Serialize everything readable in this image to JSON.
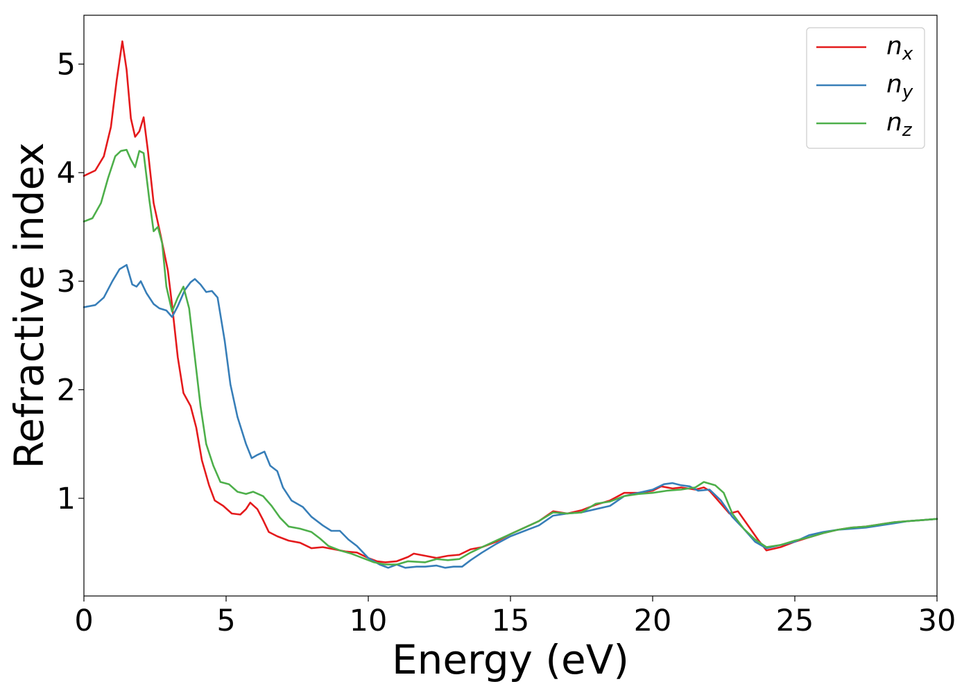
{
  "chart_data": {
    "type": "line",
    "xlabel": "Energy (eV)",
    "ylabel": "Refractive index",
    "xlim": [
      0,
      30
    ],
    "ylim": [
      0.1,
      5.45
    ],
    "xticks": [
      0,
      5,
      10,
      15,
      20,
      25,
      30
    ],
    "xtick_labels": [
      "0",
      "5",
      "10",
      "15",
      "20",
      "25",
      "30"
    ],
    "yticks": [
      1,
      2,
      3,
      4,
      5
    ],
    "ytick_labels": [
      "1",
      "2",
      "3",
      "4",
      "5"
    ],
    "grid": false,
    "legend_position": "top-right",
    "series": [
      {
        "name": "n_x",
        "legend_base": "n",
        "legend_sub": "x",
        "color": "#e41a1c",
        "points": [
          [
            0,
            3.97
          ],
          [
            0.4,
            4.02
          ],
          [
            0.7,
            4.15
          ],
          [
            0.95,
            4.42
          ],
          [
            1.15,
            4.85
          ],
          [
            1.35,
            5.21
          ],
          [
            1.5,
            4.95
          ],
          [
            1.65,
            4.5
          ],
          [
            1.8,
            4.33
          ],
          [
            1.95,
            4.38
          ],
          [
            2.1,
            4.51
          ],
          [
            2.25,
            4.2
          ],
          [
            2.45,
            3.72
          ],
          [
            2.7,
            3.42
          ],
          [
            2.95,
            3.1
          ],
          [
            3.1,
            2.78
          ],
          [
            3.3,
            2.3
          ],
          [
            3.5,
            1.97
          ],
          [
            3.75,
            1.85
          ],
          [
            3.95,
            1.65
          ],
          [
            4.15,
            1.35
          ],
          [
            4.4,
            1.12
          ],
          [
            4.6,
            0.98
          ],
          [
            4.9,
            0.93
          ],
          [
            5.2,
            0.86
          ],
          [
            5.5,
            0.85
          ],
          [
            5.7,
            0.9
          ],
          [
            5.85,
            0.96
          ],
          [
            6.1,
            0.9
          ],
          [
            6.3,
            0.8
          ],
          [
            6.5,
            0.69
          ],
          [
            6.8,
            0.65
          ],
          [
            7.2,
            0.61
          ],
          [
            7.6,
            0.59
          ],
          [
            8.0,
            0.54
          ],
          [
            8.4,
            0.55
          ],
          [
            8.8,
            0.53
          ],
          [
            9.2,
            0.51
          ],
          [
            9.6,
            0.5
          ],
          [
            10.0,
            0.45
          ],
          [
            10.3,
            0.42
          ],
          [
            10.6,
            0.41
          ],
          [
            11.0,
            0.42
          ],
          [
            11.4,
            0.46
          ],
          [
            11.6,
            0.49
          ],
          [
            12.0,
            0.47
          ],
          [
            12.4,
            0.45
          ],
          [
            12.8,
            0.47
          ],
          [
            13.2,
            0.48
          ],
          [
            13.6,
            0.53
          ],
          [
            14.0,
            0.55
          ],
          [
            14.5,
            0.6
          ],
          [
            15.0,
            0.67
          ],
          [
            15.5,
            0.73
          ],
          [
            16.0,
            0.79
          ],
          [
            16.5,
            0.88
          ],
          [
            17.0,
            0.86
          ],
          [
            17.5,
            0.89
          ],
          [
            18.0,
            0.94
          ],
          [
            18.5,
            0.98
          ],
          [
            19.0,
            1.05
          ],
          [
            19.5,
            1.05
          ],
          [
            20.0,
            1.07
          ],
          [
            20.3,
            1.11
          ],
          [
            20.7,
            1.09
          ],
          [
            21.0,
            1.1
          ],
          [
            21.5,
            1.08
          ],
          [
            21.8,
            1.1
          ],
          [
            22.0,
            1.07
          ],
          [
            22.3,
            0.98
          ],
          [
            22.7,
            0.86
          ],
          [
            23.0,
            0.88
          ],
          [
            23.3,
            0.77
          ],
          [
            23.7,
            0.62
          ],
          [
            24.0,
            0.52
          ],
          [
            24.5,
            0.55
          ],
          [
            25.0,
            0.6
          ],
          [
            25.5,
            0.64
          ],
          [
            26.0,
            0.68
          ],
          [
            26.5,
            0.71
          ],
          [
            27.0,
            0.73
          ],
          [
            27.5,
            0.74
          ],
          [
            28.0,
            0.76
          ],
          [
            28.5,
            0.78
          ],
          [
            29.0,
            0.79
          ],
          [
            29.5,
            0.8
          ],
          [
            30.0,
            0.81
          ]
        ]
      },
      {
        "name": "n_y",
        "legend_base": "n",
        "legend_sub": "y",
        "color": "#377eb8",
        "points": [
          [
            0,
            2.76
          ],
          [
            0.4,
            2.78
          ],
          [
            0.7,
            2.85
          ],
          [
            1.0,
            3.0
          ],
          [
            1.25,
            3.11
          ],
          [
            1.5,
            3.15
          ],
          [
            1.7,
            2.97
          ],
          [
            1.85,
            2.95
          ],
          [
            2.0,
            3.0
          ],
          [
            2.2,
            2.89
          ],
          [
            2.45,
            2.79
          ],
          [
            2.65,
            2.75
          ],
          [
            2.9,
            2.73
          ],
          [
            3.1,
            2.67
          ],
          [
            3.3,
            2.77
          ],
          [
            3.55,
            2.92
          ],
          [
            3.75,
            2.99
          ],
          [
            3.9,
            3.02
          ],
          [
            4.1,
            2.97
          ],
          [
            4.3,
            2.9
          ],
          [
            4.5,
            2.91
          ],
          [
            4.7,
            2.85
          ],
          [
            4.95,
            2.45
          ],
          [
            5.15,
            2.05
          ],
          [
            5.4,
            1.75
          ],
          [
            5.7,
            1.5
          ],
          [
            5.9,
            1.37
          ],
          [
            6.1,
            1.4
          ],
          [
            6.35,
            1.43
          ],
          [
            6.55,
            1.3
          ],
          [
            6.8,
            1.25
          ],
          [
            7.0,
            1.1
          ],
          [
            7.3,
            0.98
          ],
          [
            7.7,
            0.92
          ],
          [
            8.0,
            0.83
          ],
          [
            8.4,
            0.75
          ],
          [
            8.7,
            0.7
          ],
          [
            9.0,
            0.7
          ],
          [
            9.3,
            0.62
          ],
          [
            9.6,
            0.56
          ],
          [
            10.0,
            0.45
          ],
          [
            10.4,
            0.39
          ],
          [
            10.7,
            0.36
          ],
          [
            11.0,
            0.39
          ],
          [
            11.3,
            0.36
          ],
          [
            11.7,
            0.37
          ],
          [
            12.0,
            0.37
          ],
          [
            12.4,
            0.38
          ],
          [
            12.7,
            0.36
          ],
          [
            13.0,
            0.37
          ],
          [
            13.3,
            0.37
          ],
          [
            13.6,
            0.43
          ],
          [
            14.0,
            0.5
          ],
          [
            14.5,
            0.58
          ],
          [
            15.0,
            0.65
          ],
          [
            15.5,
            0.7
          ],
          [
            16.0,
            0.75
          ],
          [
            16.5,
            0.84
          ],
          [
            17.0,
            0.86
          ],
          [
            17.5,
            0.87
          ],
          [
            18.0,
            0.9
          ],
          [
            18.5,
            0.93
          ],
          [
            19.0,
            1.02
          ],
          [
            19.5,
            1.05
          ],
          [
            20.0,
            1.08
          ],
          [
            20.4,
            1.13
          ],
          [
            20.7,
            1.14
          ],
          [
            21.0,
            1.12
          ],
          [
            21.3,
            1.11
          ],
          [
            21.6,
            1.07
          ],
          [
            22.0,
            1.08
          ],
          [
            22.4,
            0.98
          ],
          [
            22.8,
            0.83
          ],
          [
            23.2,
            0.72
          ],
          [
            23.6,
            0.6
          ],
          [
            24.0,
            0.54
          ],
          [
            24.5,
            0.57
          ],
          [
            25.0,
            0.6
          ],
          [
            25.5,
            0.66
          ],
          [
            26.0,
            0.69
          ],
          [
            26.5,
            0.71
          ],
          [
            27.0,
            0.72
          ],
          [
            27.5,
            0.73
          ],
          [
            28.0,
            0.75
          ],
          [
            28.5,
            0.77
          ],
          [
            29.0,
            0.79
          ],
          [
            29.5,
            0.8
          ],
          [
            30.0,
            0.81
          ]
        ]
      },
      {
        "name": "n_z",
        "legend_base": "n",
        "legend_sub": "z",
        "color": "#4daf4a",
        "points": [
          [
            0,
            3.55
          ],
          [
            0.3,
            3.58
          ],
          [
            0.6,
            3.72
          ],
          [
            0.85,
            3.95
          ],
          [
            1.1,
            4.15
          ],
          [
            1.3,
            4.2
          ],
          [
            1.5,
            4.21
          ],
          [
            1.65,
            4.12
          ],
          [
            1.8,
            4.05
          ],
          [
            1.95,
            4.2
          ],
          [
            2.1,
            4.18
          ],
          [
            2.3,
            3.75
          ],
          [
            2.45,
            3.46
          ],
          [
            2.6,
            3.5
          ],
          [
            2.75,
            3.35
          ],
          [
            2.9,
            2.95
          ],
          [
            3.1,
            2.72
          ],
          [
            3.3,
            2.85
          ],
          [
            3.5,
            2.95
          ],
          [
            3.7,
            2.75
          ],
          [
            3.9,
            2.3
          ],
          [
            4.1,
            1.85
          ],
          [
            4.3,
            1.5
          ],
          [
            4.55,
            1.3
          ],
          [
            4.8,
            1.15
          ],
          [
            5.1,
            1.13
          ],
          [
            5.4,
            1.06
          ],
          [
            5.7,
            1.04
          ],
          [
            5.95,
            1.06
          ],
          [
            6.3,
            1.02
          ],
          [
            6.6,
            0.93
          ],
          [
            6.9,
            0.82
          ],
          [
            7.2,
            0.74
          ],
          [
            7.6,
            0.72
          ],
          [
            8.0,
            0.69
          ],
          [
            8.3,
            0.63
          ],
          [
            8.6,
            0.56
          ],
          [
            9.0,
            0.52
          ],
          [
            9.4,
            0.49
          ],
          [
            9.8,
            0.45
          ],
          [
            10.2,
            0.41
          ],
          [
            10.6,
            0.39
          ],
          [
            11.0,
            0.39
          ],
          [
            11.4,
            0.42
          ],
          [
            12.0,
            0.41
          ],
          [
            12.4,
            0.44
          ],
          [
            12.8,
            0.43
          ],
          [
            13.2,
            0.44
          ],
          [
            13.6,
            0.5
          ],
          [
            14.0,
            0.55
          ],
          [
            14.5,
            0.61
          ],
          [
            15.0,
            0.67
          ],
          [
            15.5,
            0.73
          ],
          [
            16.0,
            0.79
          ],
          [
            16.5,
            0.87
          ],
          [
            17.0,
            0.86
          ],
          [
            17.5,
            0.87
          ],
          [
            18.0,
            0.95
          ],
          [
            18.5,
            0.97
          ],
          [
            19.0,
            1.02
          ],
          [
            19.5,
            1.04
          ],
          [
            20.0,
            1.05
          ],
          [
            20.5,
            1.07
          ],
          [
            21.0,
            1.08
          ],
          [
            21.5,
            1.1
          ],
          [
            21.8,
            1.15
          ],
          [
            22.2,
            1.12
          ],
          [
            22.5,
            1.05
          ],
          [
            22.8,
            0.86
          ],
          [
            23.2,
            0.72
          ],
          [
            23.6,
            0.62
          ],
          [
            24.0,
            0.55
          ],
          [
            24.5,
            0.57
          ],
          [
            25.0,
            0.61
          ],
          [
            25.5,
            0.64
          ],
          [
            26.0,
            0.68
          ],
          [
            26.5,
            0.71
          ],
          [
            27.0,
            0.73
          ],
          [
            27.5,
            0.74
          ],
          [
            28.0,
            0.76
          ],
          [
            28.5,
            0.78
          ],
          [
            29.0,
            0.79
          ],
          [
            29.5,
            0.8
          ],
          [
            30.0,
            0.81
          ]
        ]
      }
    ]
  }
}
